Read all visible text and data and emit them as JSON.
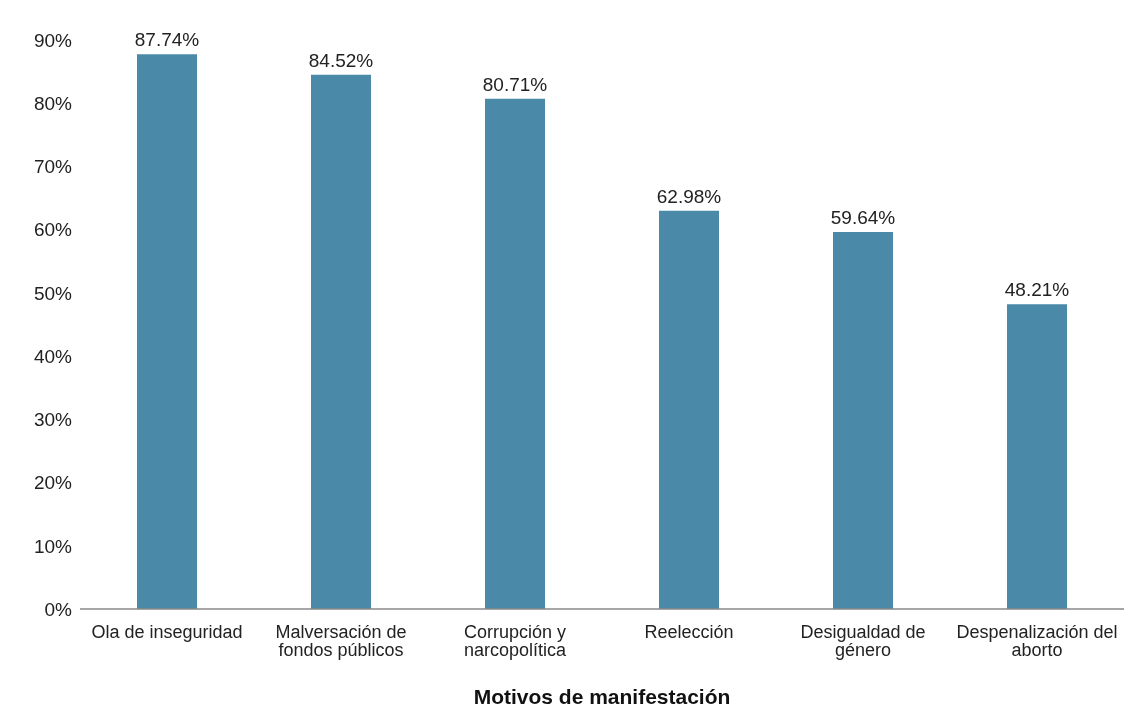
{
  "chart_data": {
    "type": "bar",
    "xlabel": "Motivos de manifestación",
    "categories": [
      "Ola de inseguridad",
      "Malversación de fondos públicos",
      "Corrupción y narcopolítica",
      "Reelección",
      "Desigualdad de género",
      "Despenalización del aborto"
    ],
    "values": [
      87.74,
      84.52,
      80.71,
      62.98,
      59.64,
      48.21
    ],
    "value_labels": [
      "87.74%",
      "84.52%",
      "80.71%",
      "62.98%",
      "59.64%",
      "48.21%"
    ],
    "color": "#4a8aa8",
    "ylim": [
      0,
      90
    ],
    "yticks": [
      {
        "value": 0,
        "label": "0%"
      },
      {
        "value": 10,
        "label": "10%"
      },
      {
        "value": 20,
        "label": "20%"
      },
      {
        "value": 30,
        "label": "30%"
      },
      {
        "value": 40,
        "label": "40%"
      },
      {
        "value": 50,
        "label": "50%"
      },
      {
        "value": 60,
        "label": "60%"
      },
      {
        "value": 70,
        "label": "70%"
      },
      {
        "value": 80,
        "label": "80%"
      },
      {
        "value": 90,
        "label": "90%"
      }
    ],
    "grid": false
  }
}
